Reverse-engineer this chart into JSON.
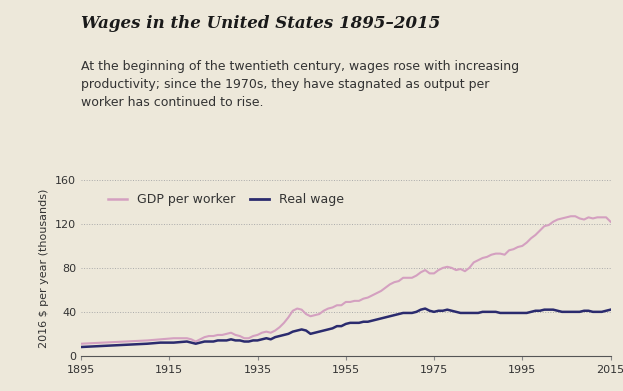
{
  "title": "Wages in the United States 1895–2015",
  "subtitle": "At the beginning of the twentieth century, wages rose with increasing\nproductivity; since the 1970s, they have stagnated as output per\nworker has continued to rise.",
  "ylabel": "2016 $ per year (thousands)",
  "background_color": "#ede8da",
  "plot_bg_color": "#ede8da",
  "gdp_color": "#d4a0c0",
  "wage_color": "#2b2b6e",
  "title_fontsize": 12,
  "subtitle_fontsize": 9,
  "legend_fontsize": 9,
  "axis_fontsize": 8,
  "ylabel_fontsize": 8,
  "ylim": [
    0,
    160
  ],
  "yticks": [
    0,
    40,
    80,
    120,
    160
  ],
  "xticks": [
    1895,
    1915,
    1935,
    1955,
    1975,
    1995,
    2015
  ],
  "gdp_per_worker": [
    [
      1895,
      11
    ],
    [
      1900,
      12
    ],
    [
      1905,
      13
    ],
    [
      1910,
      14
    ],
    [
      1913,
      15
    ],
    [
      1916,
      16
    ],
    [
      1919,
      16
    ],
    [
      1920,
      15
    ],
    [
      1921,
      13
    ],
    [
      1922,
      15
    ],
    [
      1923,
      17
    ],
    [
      1924,
      18
    ],
    [
      1925,
      18
    ],
    [
      1926,
      19
    ],
    [
      1927,
      19
    ],
    [
      1928,
      20
    ],
    [
      1929,
      21
    ],
    [
      1930,
      19
    ],
    [
      1931,
      18
    ],
    [
      1932,
      16
    ],
    [
      1933,
      16
    ],
    [
      1934,
      18
    ],
    [
      1935,
      19
    ],
    [
      1936,
      21
    ],
    [
      1937,
      22
    ],
    [
      1938,
      21
    ],
    [
      1939,
      23
    ],
    [
      1940,
      26
    ],
    [
      1941,
      30
    ],
    [
      1942,
      35
    ],
    [
      1943,
      41
    ],
    [
      1944,
      43
    ],
    [
      1945,
      42
    ],
    [
      1946,
      38
    ],
    [
      1947,
      36
    ],
    [
      1948,
      37
    ],
    [
      1949,
      38
    ],
    [
      1950,
      41
    ],
    [
      1951,
      43
    ],
    [
      1952,
      44
    ],
    [
      1953,
      46
    ],
    [
      1954,
      46
    ],
    [
      1955,
      49
    ],
    [
      1956,
      49
    ],
    [
      1957,
      50
    ],
    [
      1958,
      50
    ],
    [
      1959,
      52
    ],
    [
      1960,
      53
    ],
    [
      1961,
      55
    ],
    [
      1962,
      57
    ],
    [
      1963,
      59
    ],
    [
      1964,
      62
    ],
    [
      1965,
      65
    ],
    [
      1966,
      67
    ],
    [
      1967,
      68
    ],
    [
      1968,
      71
    ],
    [
      1969,
      71
    ],
    [
      1970,
      71
    ],
    [
      1971,
      73
    ],
    [
      1972,
      76
    ],
    [
      1973,
      78
    ],
    [
      1974,
      75
    ],
    [
      1975,
      75
    ],
    [
      1976,
      78
    ],
    [
      1977,
      80
    ],
    [
      1978,
      81
    ],
    [
      1979,
      80
    ],
    [
      1980,
      78
    ],
    [
      1981,
      79
    ],
    [
      1982,
      77
    ],
    [
      1983,
      80
    ],
    [
      1984,
      85
    ],
    [
      1985,
      87
    ],
    [
      1986,
      89
    ],
    [
      1987,
      90
    ],
    [
      1988,
      92
    ],
    [
      1989,
      93
    ],
    [
      1990,
      93
    ],
    [
      1991,
      92
    ],
    [
      1992,
      96
    ],
    [
      1993,
      97
    ],
    [
      1994,
      99
    ],
    [
      1995,
      100
    ],
    [
      1996,
      103
    ],
    [
      1997,
      107
    ],
    [
      1998,
      110
    ],
    [
      1999,
      114
    ],
    [
      2000,
      118
    ],
    [
      2001,
      119
    ],
    [
      2002,
      122
    ],
    [
      2003,
      124
    ],
    [
      2004,
      125
    ],
    [
      2005,
      126
    ],
    [
      2006,
      127
    ],
    [
      2007,
      127
    ],
    [
      2008,
      125
    ],
    [
      2009,
      124
    ],
    [
      2010,
      126
    ],
    [
      2011,
      125
    ],
    [
      2012,
      126
    ],
    [
      2013,
      126
    ],
    [
      2014,
      126
    ],
    [
      2015,
      122
    ]
  ],
  "real_wage": [
    [
      1895,
      8
    ],
    [
      1900,
      9
    ],
    [
      1905,
      10
    ],
    [
      1910,
      11
    ],
    [
      1913,
      12
    ],
    [
      1916,
      12
    ],
    [
      1919,
      13
    ],
    [
      1920,
      12
    ],
    [
      1921,
      11
    ],
    [
      1922,
      12
    ],
    [
      1923,
      13
    ],
    [
      1924,
      13
    ],
    [
      1925,
      13
    ],
    [
      1926,
      14
    ],
    [
      1927,
      14
    ],
    [
      1928,
      14
    ],
    [
      1929,
      15
    ],
    [
      1930,
      14
    ],
    [
      1931,
      14
    ],
    [
      1932,
      13
    ],
    [
      1933,
      13
    ],
    [
      1934,
      14
    ],
    [
      1935,
      14
    ],
    [
      1936,
      15
    ],
    [
      1937,
      16
    ],
    [
      1938,
      15
    ],
    [
      1939,
      17
    ],
    [
      1940,
      18
    ],
    [
      1941,
      19
    ],
    [
      1942,
      20
    ],
    [
      1943,
      22
    ],
    [
      1944,
      23
    ],
    [
      1945,
      24
    ],
    [
      1946,
      23
    ],
    [
      1947,
      20
    ],
    [
      1948,
      21
    ],
    [
      1949,
      22
    ],
    [
      1950,
      23
    ],
    [
      1951,
      24
    ],
    [
      1952,
      25
    ],
    [
      1953,
      27
    ],
    [
      1954,
      27
    ],
    [
      1955,
      29
    ],
    [
      1956,
      30
    ],
    [
      1957,
      30
    ],
    [
      1958,
      30
    ],
    [
      1959,
      31
    ],
    [
      1960,
      31
    ],
    [
      1961,
      32
    ],
    [
      1962,
      33
    ],
    [
      1963,
      34
    ],
    [
      1964,
      35
    ],
    [
      1965,
      36
    ],
    [
      1966,
      37
    ],
    [
      1967,
      38
    ],
    [
      1968,
      39
    ],
    [
      1969,
      39
    ],
    [
      1970,
      39
    ],
    [
      1971,
      40
    ],
    [
      1972,
      42
    ],
    [
      1973,
      43
    ],
    [
      1974,
      41
    ],
    [
      1975,
      40
    ],
    [
      1976,
      41
    ],
    [
      1977,
      41
    ],
    [
      1978,
      42
    ],
    [
      1979,
      41
    ],
    [
      1980,
      40
    ],
    [
      1981,
      39
    ],
    [
      1982,
      39
    ],
    [
      1983,
      39
    ],
    [
      1984,
      39
    ],
    [
      1985,
      39
    ],
    [
      1986,
      40
    ],
    [
      1987,
      40
    ],
    [
      1988,
      40
    ],
    [
      1989,
      40
    ],
    [
      1990,
      39
    ],
    [
      1991,
      39
    ],
    [
      1992,
      39
    ],
    [
      1993,
      39
    ],
    [
      1994,
      39
    ],
    [
      1995,
      39
    ],
    [
      1996,
      39
    ],
    [
      1997,
      40
    ],
    [
      1998,
      41
    ],
    [
      1999,
      41
    ],
    [
      2000,
      42
    ],
    [
      2001,
      42
    ],
    [
      2002,
      42
    ],
    [
      2003,
      41
    ],
    [
      2004,
      40
    ],
    [
      2005,
      40
    ],
    [
      2006,
      40
    ],
    [
      2007,
      40
    ],
    [
      2008,
      40
    ],
    [
      2009,
      41
    ],
    [
      2010,
      41
    ],
    [
      2011,
      40
    ],
    [
      2012,
      40
    ],
    [
      2013,
      40
    ],
    [
      2014,
      41
    ],
    [
      2015,
      42
    ]
  ]
}
